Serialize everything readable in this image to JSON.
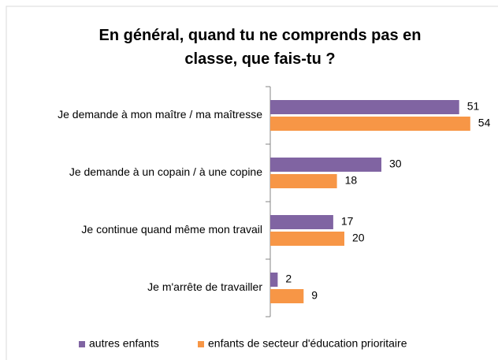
{
  "chart_data": {
    "type": "hbar",
    "title": "En général, quand tu ne comprends pas en classe, que fais-tu ?",
    "categories": [
      "Je demande à mon maître / ma maîtresse",
      "Je demande à un copain / à une copine",
      "Je continue quand même mon travail",
      "Je m'arrête de travailler"
    ],
    "series": [
      {
        "name": "autres enfants",
        "color": "#8064a2",
        "values": [
          51,
          30,
          17,
          2
        ]
      },
      {
        "name": "enfants de secteur d'éducation prioritaire",
        "color": "#f79646",
        "values": [
          54,
          18,
          20,
          9
        ]
      }
    ],
    "xlim": [
      0,
      60
    ],
    "legend": "bottom"
  }
}
